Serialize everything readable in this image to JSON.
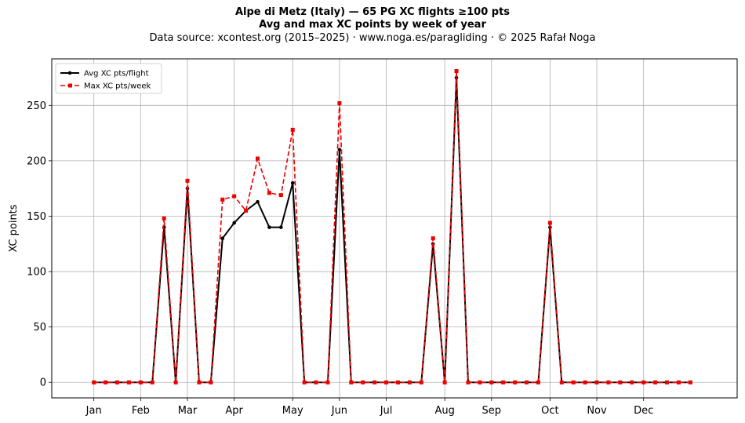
{
  "title": "Alpe di Metz (Italy)  —  65 PG XC flights ≥100 pts",
  "subtitle": "Avg and max XC points by week of year",
  "source": "Data source: xcontest.org (2015–2025)  ·  www.noga.es/paragliding  ·  © 2025 Rafał Noga",
  "chart_data": {
    "type": "line",
    "title": "Alpe di Metz (Italy)  —  65 PG XC flights ≥100 pts",
    "subtitle": "Avg and max XC points by week of year",
    "xlabel": "",
    "ylabel": "XC points",
    "xlim": [
      -2.6,
      56
    ],
    "ylim": [
      -14,
      292
    ],
    "grid": true,
    "legend": "upper left",
    "yticks": [
      0,
      50,
      100,
      150,
      200,
      250
    ],
    "month_ticks": [
      {
        "label": "Jan",
        "week": 1
      },
      {
        "label": "Feb",
        "week": 5
      },
      {
        "label": "Mar",
        "week": 9
      },
      {
        "label": "Apr",
        "week": 13
      },
      {
        "label": "May",
        "week": 18
      },
      {
        "label": "Jun",
        "week": 22
      },
      {
        "label": "Jul",
        "week": 26
      },
      {
        "label": "Aug",
        "week": 31
      },
      {
        "label": "Sep",
        "week": 35
      },
      {
        "label": "Oct",
        "week": 40
      },
      {
        "label": "Nov",
        "week": 44
      },
      {
        "label": "Dec",
        "week": 48
      }
    ],
    "x": [
      1,
      2,
      3,
      4,
      5,
      6,
      7,
      8,
      9,
      10,
      11,
      12,
      13,
      14,
      15,
      16,
      17,
      18,
      19,
      20,
      21,
      22,
      23,
      24,
      25,
      26,
      27,
      28,
      29,
      30,
      31,
      32,
      33,
      34,
      35,
      36,
      37,
      38,
      39,
      40,
      41,
      42,
      43,
      44,
      45,
      46,
      47,
      48,
      49,
      50,
      51,
      52
    ],
    "series": [
      {
        "name": "Avg XC pts/flight",
        "color": "#000000",
        "style": "solid",
        "marker": "circle",
        "values": [
          0,
          0,
          0,
          0,
          0,
          0,
          140,
          0,
          175,
          0,
          0,
          130,
          144,
          155,
          163,
          140,
          140,
          180,
          0,
          0,
          0,
          210,
          0,
          0,
          0,
          0,
          0,
          0,
          0,
          125,
          0,
          275,
          0,
          0,
          0,
          0,
          0,
          0,
          0,
          140,
          0,
          0,
          0,
          0,
          0,
          0,
          0,
          0,
          0,
          0,
          0,
          0
        ]
      },
      {
        "name": "Max XC pts/week",
        "color": "#ee0000",
        "style": "dashed",
        "marker": "square",
        "values": [
          0,
          0,
          0,
          0,
          0,
          0,
          148,
          0,
          182,
          0,
          0,
          165,
          168,
          155,
          202,
          171,
          169,
          228,
          0,
          0,
          0,
          252,
          0,
          0,
          0,
          0,
          0,
          0,
          0,
          130,
          0,
          281,
          0,
          0,
          0,
          0,
          0,
          0,
          0,
          144,
          0,
          0,
          0,
          0,
          0,
          0,
          0,
          0,
          0,
          0,
          0,
          0
        ]
      }
    ]
  }
}
